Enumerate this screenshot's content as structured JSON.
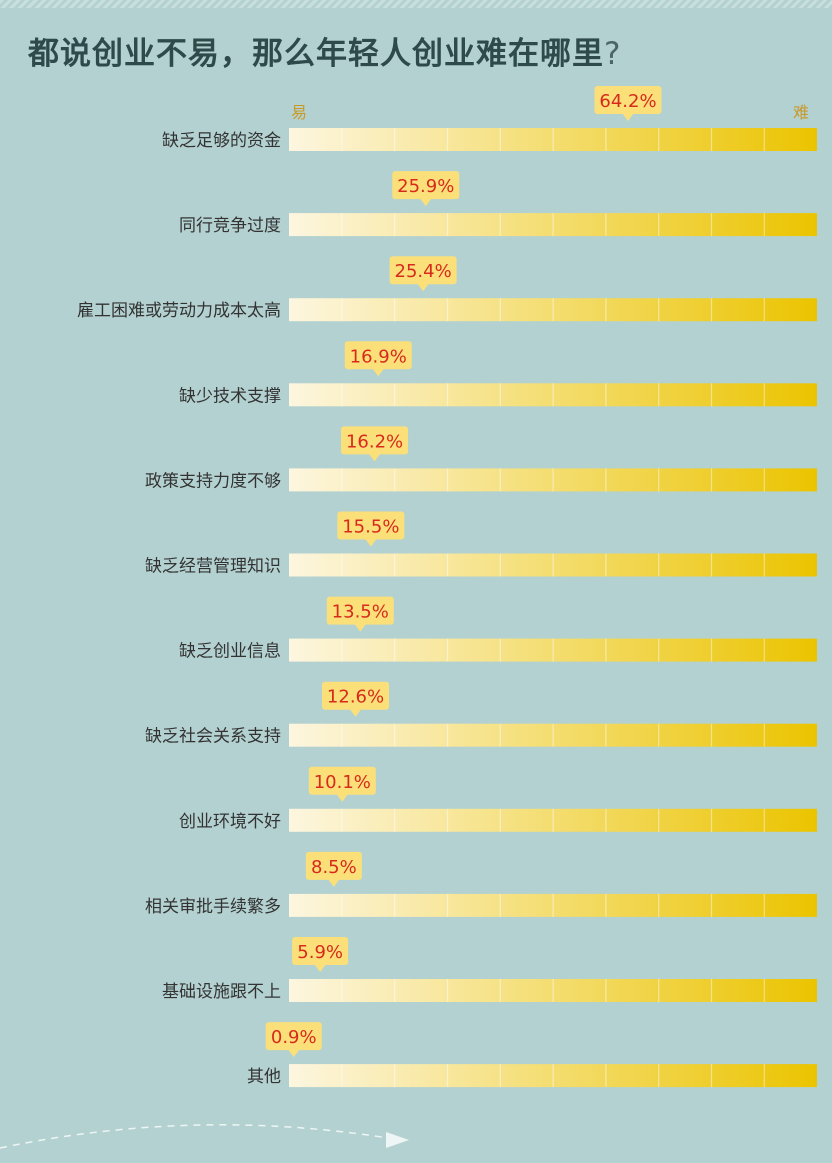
{
  "title": "都说创业不易，那么年轻人创业难在哪里",
  "title_mark": "?",
  "scale": {
    "easy": "易",
    "hard": "难"
  },
  "colors": {
    "background": "#b3d1d0",
    "bar_light": "#fdf6e0",
    "bar_dark": "#ebc400",
    "label_bubble": "#fbe07a",
    "label_text": "#d82a1c",
    "category_text": "#333333"
  },
  "chart_data": {
    "type": "bar",
    "orientation": "horizontal",
    "title": "都说创业不易，那么年轻人创业难在哪里?",
    "unit": "%",
    "xlim": [
      0,
      100
    ],
    "categories": [
      "缺乏足够的资金",
      "同行竞争过度",
      "雇工困难或劳动力成本太高",
      "缺少技术支撑",
      "政策支持力度不够",
      "缺乏经营管理知识",
      "缺乏创业信息",
      "缺乏社会关系支持",
      "创业环境不好",
      "相关审批手续繁多",
      "基础设施跟不上",
      "其他"
    ],
    "values": [
      64.2,
      25.9,
      25.4,
      16.9,
      16.2,
      15.5,
      13.5,
      12.6,
      10.1,
      8.5,
      5.9,
      0.9
    ],
    "value_labels": [
      "64.2%",
      "25.9%",
      "25.4%",
      "16.9%",
      "16.2%",
      "15.5%",
      "13.5%",
      "12.6%",
      "10.1%",
      "8.5%",
      "5.9%",
      "0.9%"
    ],
    "axis_ends": [
      "易",
      "难"
    ],
    "grid": false,
    "legend": "none"
  }
}
